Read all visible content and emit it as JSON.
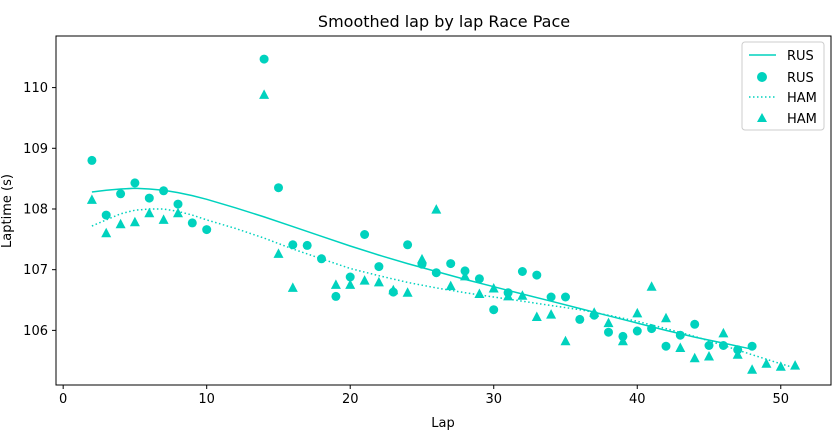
{
  "chart_data": {
    "type": "scatter",
    "title": "Smoothed lap by lap Race Pace",
    "xlabel": "Lap",
    "ylabel": "Laptime (s)",
    "xlim": [
      -0.5,
      53.5
    ],
    "ylim": [
      105.1,
      110.85
    ],
    "xticks": [
      0,
      10,
      20,
      30,
      40,
      50
    ],
    "yticks": [
      106,
      107,
      108,
      109,
      110
    ],
    "grid": false,
    "legend_position": "top-right",
    "color": "#00d2be",
    "series": [
      {
        "name": "RUS",
        "kind": "line-solid",
        "x": [
          2,
          3,
          4,
          5,
          6,
          7,
          8,
          9,
          10,
          12,
          14,
          16,
          18,
          20,
          22,
          24,
          26,
          28,
          30,
          32,
          34,
          36,
          38,
          40,
          42,
          44,
          46,
          48
        ],
        "y": [
          108.28,
          108.31,
          108.33,
          108.34,
          108.33,
          108.31,
          108.27,
          108.22,
          108.16,
          108.02,
          107.87,
          107.71,
          107.55,
          107.39,
          107.24,
          107.1,
          106.97,
          106.84,
          106.72,
          106.6,
          106.48,
          106.36,
          106.24,
          106.12,
          106.0,
          105.89,
          105.79,
          105.69
        ]
      },
      {
        "name": "RUS",
        "kind": "markers-circle",
        "x": [
          2,
          3,
          4,
          5,
          6,
          7,
          8,
          9,
          10,
          14,
          15,
          16,
          17,
          18,
          19,
          20,
          21,
          22,
          23,
          24,
          25,
          26,
          27,
          28,
          29,
          30,
          31,
          32,
          33,
          34,
          35,
          36,
          37,
          38,
          39,
          40,
          41,
          42,
          43,
          44,
          45,
          46,
          47,
          48
        ],
        "y": [
          108.8,
          107.9,
          108.25,
          108.43,
          108.18,
          108.3,
          108.08,
          107.77,
          107.66,
          110.47,
          108.35,
          107.41,
          107.4,
          107.18,
          106.56,
          106.88,
          107.58,
          107.05,
          106.63,
          107.41,
          107.09,
          106.95,
          107.1,
          106.98,
          106.85,
          106.34,
          106.62,
          106.97,
          106.91,
          106.55,
          106.55,
          106.18,
          106.25,
          105.97,
          105.9,
          105.99,
          106.03,
          105.74,
          105.92,
          106.1,
          105.75,
          105.75,
          105.68,
          105.74
        ]
      },
      {
        "name": "HAM",
        "kind": "line-dotted",
        "x": [
          2,
          3,
          4,
          5,
          6,
          7,
          8,
          9,
          10,
          12,
          14,
          16,
          18,
          20,
          22,
          24,
          26,
          28,
          30,
          32,
          34,
          36,
          38,
          40,
          42,
          44,
          46,
          48,
          50,
          51
        ],
        "y": [
          107.72,
          107.82,
          107.92,
          107.98,
          108.0,
          108.0,
          107.96,
          107.9,
          107.82,
          107.68,
          107.52,
          107.34,
          107.18,
          107.02,
          106.9,
          106.79,
          106.7,
          106.62,
          106.55,
          106.48,
          106.41,
          106.34,
          106.25,
          106.15,
          106.03,
          105.9,
          105.75,
          105.6,
          105.45,
          105.38
        ]
      },
      {
        "name": "HAM",
        "kind": "markers-triangle",
        "x": [
          2,
          3,
          4,
          5,
          6,
          7,
          8,
          14,
          15,
          16,
          19,
          20,
          21,
          22,
          23,
          24,
          25,
          26,
          27,
          28,
          29,
          30,
          31,
          32,
          33,
          34,
          35,
          37,
          38,
          39,
          40,
          41,
          42,
          43,
          44,
          45,
          46,
          47,
          48,
          49,
          50,
          51
        ],
        "y": [
          108.15,
          107.6,
          107.75,
          107.78,
          107.93,
          107.82,
          107.93,
          109.88,
          107.26,
          106.7,
          106.75,
          106.75,
          106.82,
          106.79,
          106.66,
          106.62,
          107.17,
          107.99,
          106.73,
          106.89,
          106.6,
          106.69,
          106.56,
          106.57,
          106.22,
          106.26,
          105.82,
          106.29,
          106.12,
          105.82,
          106.28,
          106.72,
          106.2,
          105.71,
          105.54,
          105.57,
          105.95,
          105.6,
          105.35,
          105.45,
          105.4,
          105.42
        ]
      }
    ]
  }
}
